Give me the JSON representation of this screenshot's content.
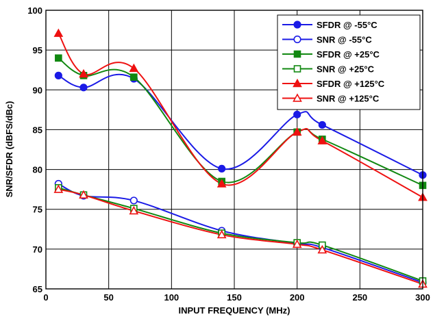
{
  "chart_data": {
    "type": "line",
    "xlabel": "INPUT FREQUENCY (MHz)",
    "ylabel": "SNR/SFDR (dBFS/dBc)",
    "xlim": [
      0,
      300
    ],
    "ylim": [
      65,
      100
    ],
    "xticks": [
      "0",
      "50",
      "100",
      "150",
      "200",
      "250",
      "300"
    ],
    "yticks": [
      "65",
      "70",
      "75",
      "80",
      "85",
      "90",
      "95",
      "100"
    ],
    "grid": true,
    "legend_position": "top-right",
    "x": [
      10,
      30,
      70,
      140,
      200,
      220,
      300
    ],
    "series": [
      {
        "name": "SFDR @ -55°C",
        "color": "#1a1ae6",
        "marker": "circle",
        "filled": true,
        "values": [
          91.8,
          90.3,
          91.4,
          80.1,
          86.9,
          85.6,
          79.3
        ]
      },
      {
        "name": "SNR @ -55°C",
        "color": "#1a1ae6",
        "marker": "circle",
        "filled": false,
        "values": [
          78.2,
          76.7,
          76.1,
          72.3,
          70.7,
          70.2,
          65.8
        ]
      },
      {
        "name": "SFDR @ +25°C",
        "color": "#118811",
        "marker": "square",
        "filled": true,
        "values": [
          94.0,
          91.8,
          91.6,
          78.5,
          84.7,
          83.8,
          78.0
        ]
      },
      {
        "name": "SNR @ +25°C",
        "color": "#118811",
        "marker": "square",
        "filled": false,
        "values": [
          77.7,
          76.8,
          75.1,
          72.0,
          70.8,
          70.5,
          66.0
        ]
      },
      {
        "name": "SFDR @ +125°C",
        "color": "#ee1111",
        "marker": "triangle",
        "filled": true,
        "values": [
          97.1,
          92.0,
          92.7,
          78.2,
          84.7,
          83.6,
          76.5
        ]
      },
      {
        "name": "SNR @ +125°C",
        "color": "#ee1111",
        "marker": "triangle",
        "filled": false,
        "values": [
          77.5,
          76.8,
          74.8,
          71.8,
          70.6,
          69.9,
          65.6
        ]
      }
    ]
  }
}
